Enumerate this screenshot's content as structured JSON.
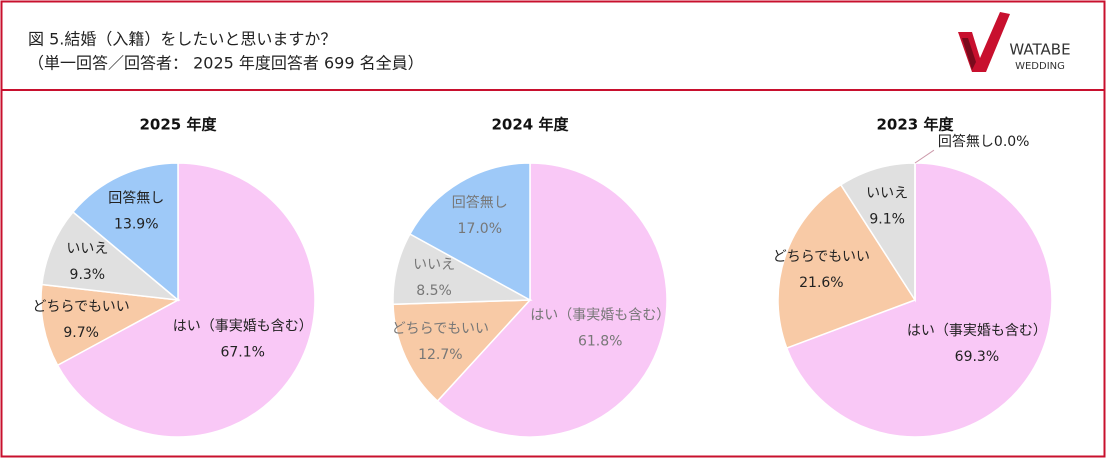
{
  "header": {
    "title": "図 5.結婚（入籍）をしたいと思いますか？",
    "subtitle": "（単一回答／回答者： 2025 年度回答者 699 名全員）",
    "logo": [
      "WATABE",
      "WEDDING"
    ]
  },
  "chart_data": [
    {
      "type": "pie",
      "title": "2025 年度",
      "categories": [
        "はい（事実婚も含む）",
        "どちらでもいい",
        "いいえ",
        "回答無し"
      ],
      "values": [
        67.1,
        9.7,
        9.3,
        13.9
      ],
      "value_labels": [
        "67.1%",
        "9.7%",
        "9.3%",
        "13.9%"
      ],
      "colors": [
        "#f9c8f6",
        "#f8caa6",
        "#e0e0e0",
        "#9ec9f8"
      ],
      "label_color": "#222"
    },
    {
      "type": "pie",
      "title": "2024 年度",
      "categories": [
        "はい（事実婚も含む）",
        "どちらでもいい",
        "いいえ",
        "回答無し"
      ],
      "values": [
        61.8,
        12.7,
        8.5,
        17.0
      ],
      "value_labels": [
        "61.8%",
        "12.7%",
        "8.5%",
        "17.0%"
      ],
      "colors": [
        "#f9c8f6",
        "#f8caa6",
        "#e0e0e0",
        "#9ec9f8"
      ],
      "label_color": "#777"
    },
    {
      "type": "pie",
      "title": "2023 年度",
      "categories": [
        "はい（事実婚も含む）",
        "どちらでもいい",
        "いいえ",
        "回答無し"
      ],
      "values": [
        69.3,
        21.6,
        9.1,
        0.0
      ],
      "value_labels": [
        "69.3%",
        "21.6%",
        "9.1%",
        "0.0%"
      ],
      "colors": [
        "#f9c8f6",
        "#f8caa6",
        "#e0e0e0",
        "#9ec9f8"
      ],
      "label_color": "#222"
    }
  ]
}
